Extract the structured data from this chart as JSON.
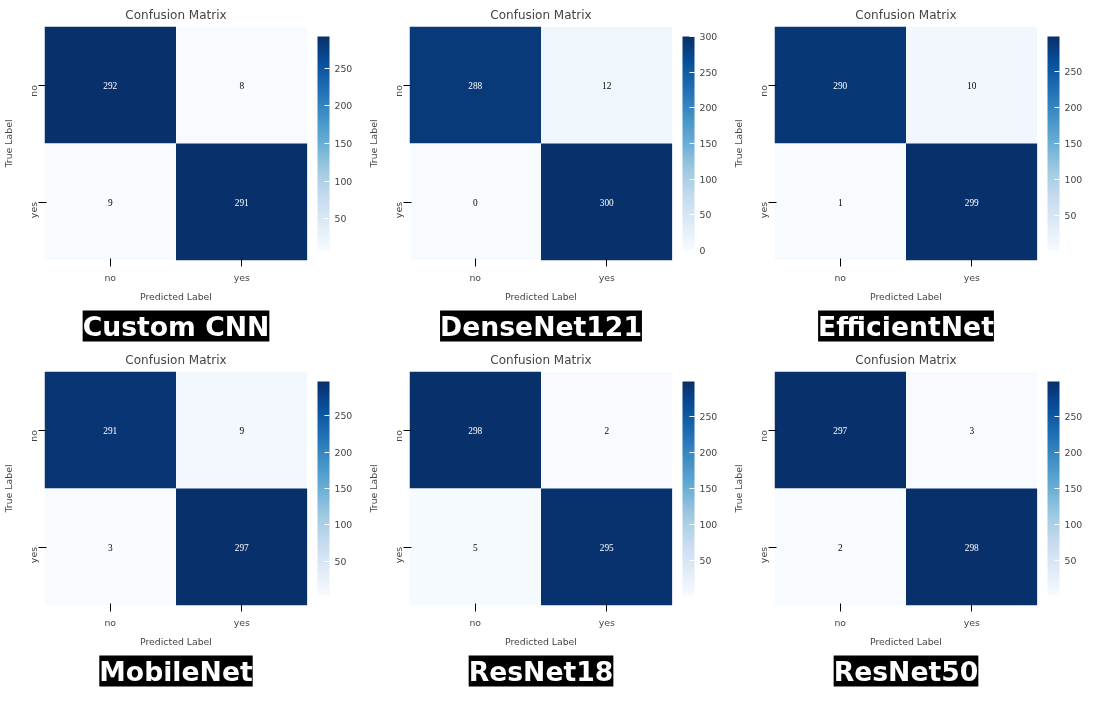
{
  "chart_data": [
    {
      "type": "heatmap",
      "title": "Confusion Matrix",
      "xlabel": "Predicted Label",
      "ylabel": "True Label",
      "categories": [
        "no",
        "yes"
      ],
      "y_categories": [
        "no",
        "yes"
      ],
      "cells": [
        [
          292,
          8
        ],
        [
          9,
          291
        ]
      ],
      "clim": [
        8,
        292
      ],
      "cticks": [
        50,
        100,
        150,
        200,
        250
      ],
      "data_labels": true,
      "annotations": [
        "Custom CNN"
      ]
    },
    {
      "type": "heatmap",
      "title": "Confusion Matrix",
      "xlabel": "Predicted Label",
      "ylabel": "True Label",
      "categories": [
        "no",
        "yes"
      ],
      "y_categories": [
        "no",
        "yes"
      ],
      "cells": [
        [
          288,
          12
        ],
        [
          0,
          300
        ]
      ],
      "clim": [
        0,
        300
      ],
      "cticks": [
        0,
        50,
        100,
        150,
        200,
        250,
        300
      ],
      "data_labels": true,
      "annotations": [
        "DenseNet121"
      ]
    },
    {
      "type": "heatmap",
      "title": "Confusion Matrix",
      "xlabel": "Predicted Label",
      "ylabel": "True Label",
      "categories": [
        "no",
        "yes"
      ],
      "y_categories": [
        "no",
        "yes"
      ],
      "cells": [
        [
          290,
          10
        ],
        [
          1,
          299
        ]
      ],
      "clim": [
        1,
        299
      ],
      "cticks": [
        50,
        100,
        150,
        200,
        250
      ],
      "data_labels": true,
      "annotations": [
        "EfficientNet"
      ]
    },
    {
      "type": "heatmap",
      "title": "Confusion Matrix",
      "xlabel": "Predicted Label",
      "ylabel": "True Label",
      "categories": [
        "no",
        "yes"
      ],
      "y_categories": [
        "no",
        "yes"
      ],
      "cells": [
        [
          291,
          9
        ],
        [
          3,
          297
        ]
      ],
      "clim": [
        3,
        297
      ],
      "cticks": [
        50,
        100,
        150,
        200,
        250
      ],
      "data_labels": true,
      "annotations": [
        "MobileNet"
      ]
    },
    {
      "type": "heatmap",
      "title": "Confusion Matrix",
      "xlabel": "Predicted Label",
      "ylabel": "True Label",
      "categories": [
        "no",
        "yes"
      ],
      "y_categories": [
        "no",
        "yes"
      ],
      "cells": [
        [
          298,
          2
        ],
        [
          5,
          295
        ]
      ],
      "clim": [
        2,
        298
      ],
      "cticks": [
        50,
        100,
        150,
        200,
        250
      ],
      "data_labels": true,
      "annotations": [
        "ResNet18"
      ]
    },
    {
      "type": "heatmap",
      "title": "Confusion Matrix",
      "xlabel": "Predicted Label",
      "ylabel": "True Label",
      "categories": [
        "no",
        "yes"
      ],
      "y_categories": [
        "no",
        "yes"
      ],
      "cells": [
        [
          297,
          3
        ],
        [
          2,
          298
        ]
      ],
      "clim": [
        2,
        298
      ],
      "cticks": [
        50,
        100,
        150,
        200,
        250
      ],
      "data_labels": true,
      "annotations": [
        "ResNet50"
      ]
    }
  ]
}
